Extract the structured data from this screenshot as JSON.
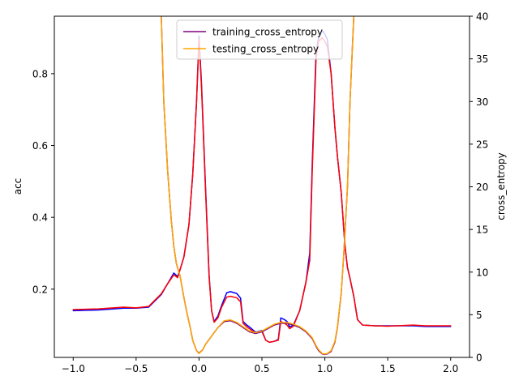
{
  "chart_data": {
    "type": "line",
    "title": "",
    "xlabel": "",
    "ylabel_left": "acc",
    "ylabel_right": "cross_entropy",
    "xlim": [
      -1.15,
      2.15
    ],
    "ylim_left": [
      0.01,
      0.96
    ],
    "ylim_right": [
      0,
      40
    ],
    "x_ticks": [
      -1.0,
      -0.5,
      0.0,
      0.5,
      1.0,
      1.5,
      2.0
    ],
    "x_tick_labels": [
      "−1.0",
      "−0.5",
      "0.0",
      "0.5",
      "1.0",
      "1.5",
      "2.0"
    ],
    "y_left_ticks": [
      0.2,
      0.4,
      0.6,
      0.8
    ],
    "y_left_tick_labels": [
      "0.2",
      "0.4",
      "0.6",
      "0.8"
    ],
    "y_right_ticks": [
      0,
      5,
      10,
      15,
      20,
      25,
      30,
      35,
      40
    ],
    "y_right_tick_labels": [
      "0",
      "5",
      "10",
      "15",
      "20",
      "25",
      "30",
      "35",
      "40"
    ],
    "grid": false,
    "legend_placement": "upper-center",
    "series": [
      {
        "axis": "left",
        "color": "#0000ff",
        "x": [
          -1.0,
          -0.8,
          -0.6,
          -0.5,
          -0.4,
          -0.3,
          -0.25,
          -0.2,
          -0.17,
          -0.15,
          -0.12,
          -0.08,
          -0.05,
          -0.02,
          0.0,
          0.02,
          0.05,
          0.08,
          0.1,
          0.12,
          0.15,
          0.18,
          0.22,
          0.25,
          0.3,
          0.33,
          0.35,
          0.38,
          0.4,
          0.45,
          0.5,
          0.53,
          0.56,
          0.6,
          0.63,
          0.65,
          0.68,
          0.7,
          0.72,
          0.75,
          0.8,
          0.85,
          0.88,
          0.9,
          0.93,
          0.95,
          0.98,
          1.0,
          1.02,
          1.05,
          1.08,
          1.1,
          1.13,
          1.16,
          1.18,
          1.2,
          1.23,
          1.26,
          1.3,
          1.4,
          1.5,
          1.7,
          1.8,
          2.0
        ],
        "y": [
          0.14,
          0.142,
          0.147,
          0.147,
          0.15,
          0.185,
          0.215,
          0.245,
          0.235,
          0.255,
          0.29,
          0.38,
          0.52,
          0.72,
          0.905,
          0.77,
          0.5,
          0.24,
          0.14,
          0.11,
          0.125,
          0.155,
          0.19,
          0.193,
          0.188,
          0.175,
          0.11,
          0.1,
          0.095,
          0.08,
          0.085,
          0.058,
          0.052,
          0.055,
          0.06,
          0.12,
          0.115,
          0.11,
          0.095,
          0.1,
          0.14,
          0.22,
          0.3,
          0.55,
          0.86,
          0.9,
          0.92,
          0.91,
          0.895,
          0.8,
          0.65,
          0.57,
          0.47,
          0.32,
          0.26,
          0.23,
          0.18,
          0.115,
          0.1,
          0.098,
          0.098,
          0.098,
          0.096,
          0.096
        ]
      },
      {
        "axis": "left",
        "color": "#ff0000",
        "x": [
          -1.0,
          -0.8,
          -0.6,
          -0.5,
          -0.4,
          -0.3,
          -0.25,
          -0.2,
          -0.17,
          -0.15,
          -0.12,
          -0.08,
          -0.05,
          -0.02,
          0.0,
          0.02,
          0.05,
          0.08,
          0.1,
          0.12,
          0.15,
          0.18,
          0.22,
          0.25,
          0.3,
          0.33,
          0.35,
          0.38,
          0.4,
          0.45,
          0.5,
          0.53,
          0.56,
          0.6,
          0.63,
          0.65,
          0.68,
          0.7,
          0.72,
          0.75,
          0.8,
          0.85,
          0.88,
          0.9,
          0.93,
          0.95,
          0.98,
          1.0,
          1.02,
          1.05,
          1.08,
          1.1,
          1.13,
          1.16,
          1.18,
          1.2,
          1.23,
          1.26,
          1.3,
          1.4,
          1.5,
          1.7,
          1.8,
          2.0
        ],
        "y": [
          0.143,
          0.145,
          0.15,
          0.148,
          0.152,
          0.187,
          0.215,
          0.24,
          0.232,
          0.255,
          0.29,
          0.38,
          0.52,
          0.72,
          0.895,
          0.76,
          0.49,
          0.235,
          0.14,
          0.108,
          0.12,
          0.15,
          0.178,
          0.18,
          0.176,
          0.165,
          0.105,
          0.095,
          0.09,
          0.078,
          0.082,
          0.058,
          0.052,
          0.055,
          0.058,
          0.11,
          0.105,
          0.1,
          0.09,
          0.097,
          0.14,
          0.22,
          0.28,
          0.53,
          0.84,
          0.89,
          0.9,
          0.89,
          0.875,
          0.8,
          0.65,
          0.57,
          0.47,
          0.32,
          0.26,
          0.23,
          0.18,
          0.115,
          0.1,
          0.098,
          0.097,
          0.1,
          0.098,
          0.098
        ]
      },
      {
        "name": "training_cross_entropy",
        "axis": "right",
        "color": "#800080",
        "x": [
          -0.3,
          -0.28,
          -0.25,
          -0.22,
          -0.2,
          -0.18,
          -0.15,
          -0.12,
          -0.1,
          -0.07,
          -0.05,
          -0.02,
          0.0,
          0.03,
          0.05,
          0.1,
          0.15,
          0.2,
          0.25,
          0.3,
          0.35,
          0.4,
          0.45,
          0.5,
          0.55,
          0.6,
          0.65,
          0.7,
          0.75,
          0.8,
          0.85,
          0.9,
          0.93,
          0.95,
          0.98,
          1.0,
          1.02,
          1.05,
          1.08,
          1.1,
          1.13,
          1.15,
          1.18,
          1.2,
          1.23
        ],
        "y": [
          40,
          30,
          22,
          16,
          13,
          11,
          9.5,
          7,
          5.5,
          3.5,
          2.0,
          0.8,
          0.5,
          0.9,
          1.5,
          2.5,
          3.5,
          4.2,
          4.3,
          4.0,
          3.5,
          3.0,
          2.8,
          3.0,
          3.4,
          3.8,
          4.0,
          4.0,
          3.8,
          3.5,
          3.0,
          2.2,
          1.3,
          0.8,
          0.4,
          0.35,
          0.4,
          0.7,
          1.8,
          3.5,
          7.5,
          12,
          20,
          30,
          40
        ]
      },
      {
        "name": "testing_cross_entropy",
        "axis": "right",
        "color": "#ffa500",
        "x": [
          -0.3,
          -0.28,
          -0.25,
          -0.22,
          -0.2,
          -0.18,
          -0.15,
          -0.12,
          -0.1,
          -0.07,
          -0.05,
          -0.02,
          0.0,
          0.03,
          0.05,
          0.1,
          0.15,
          0.2,
          0.25,
          0.3,
          0.35,
          0.4,
          0.45,
          0.5,
          0.55,
          0.6,
          0.65,
          0.7,
          0.75,
          0.8,
          0.85,
          0.9,
          0.93,
          0.95,
          0.98,
          1.0,
          1.02,
          1.05,
          1.08,
          1.1,
          1.13,
          1.15,
          1.18,
          1.2,
          1.23
        ],
        "y": [
          40,
          30,
          22,
          16,
          13,
          11,
          9.5,
          7,
          5.5,
          3.5,
          2.0,
          0.8,
          0.45,
          0.9,
          1.5,
          2.5,
          3.5,
          4.3,
          4.4,
          4.1,
          3.6,
          3.1,
          2.9,
          3.1,
          3.5,
          3.9,
          4.1,
          4.1,
          3.9,
          3.6,
          3.1,
          2.3,
          1.4,
          0.9,
          0.45,
          0.4,
          0.45,
          0.8,
          1.9,
          3.6,
          7.6,
          12,
          20,
          30,
          40
        ]
      }
    ]
  }
}
